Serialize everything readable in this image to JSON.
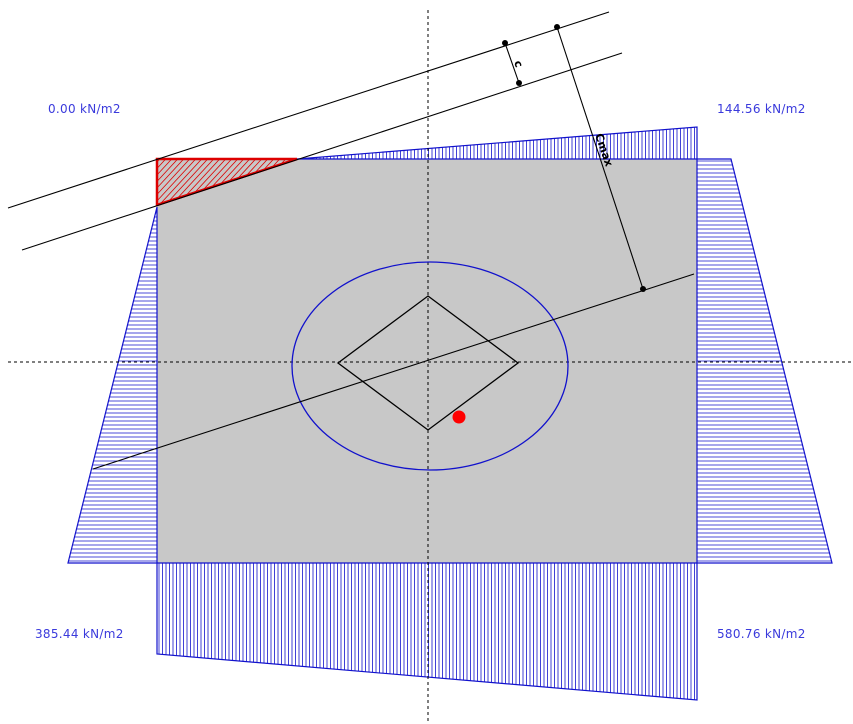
{
  "colors": {
    "diagram_line": "#1111cc",
    "label_text": "#3a3adc",
    "slab_fill": "#c8c8c8",
    "uplift_zone": "#dd0000",
    "load_point": "#ff0000",
    "line": "#000000"
  },
  "corner_pressures": {
    "top_left": "0.00 kN/m2",
    "top_right": "144.56 kN/m2",
    "bottom_left": "385.44 kN/m2",
    "bottom_right": "580.76 kN/m2"
  },
  "dimensions": {
    "c_label": "c",
    "cmax_label": "Cmax"
  }
}
